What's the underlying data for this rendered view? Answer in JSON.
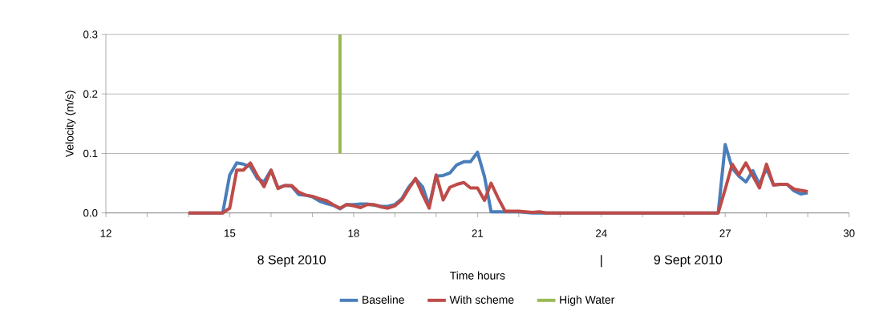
{
  "chart_data": {
    "type": "line",
    "xlabel": "Time hours",
    "ylabel": "Velocity (m/s)",
    "annotations": [
      "8 Sept 2010",
      "|",
      "9 Sept 2010"
    ],
    "xlim": [
      12,
      30
    ],
    "ylim": [
      0,
      0.3
    ],
    "xticks": [
      12,
      {
        "value": 13,
        "label": null
      },
      {
        "value": 14,
        "label": null
      },
      15,
      {
        "value": 16,
        "label": null
      },
      {
        "value": 17,
        "label": null
      },
      18,
      {
        "value": 19,
        "label": null
      },
      {
        "value": 20,
        "label": null
      },
      21,
      {
        "value": 22,
        "label": null
      },
      {
        "value": 23,
        "label": null
      },
      24,
      {
        "value": 25,
        "label": null
      },
      {
        "value": 26,
        "label": null
      },
      27,
      {
        "value": 28,
        "label": null
      },
      {
        "value": 29,
        "label": null
      },
      30
    ],
    "yticks": [
      {
        "value": 0,
        "label": "0.0"
      },
      {
        "value": 0.1,
        "label": "0.1"
      },
      {
        "value": 0.2,
        "label": "0.2"
      },
      {
        "value": 0.3,
        "label": "0.3"
      }
    ],
    "grid": "y",
    "legend": "bottom",
    "marker": "none",
    "line_style": "solid",
    "series": [
      {
        "name": "Baseline",
        "color": "#4a7ebb",
        "x": [
          14.0,
          14.83,
          15.0,
          15.17,
          15.33,
          15.5,
          15.67,
          15.83,
          16.0,
          16.17,
          16.33,
          16.5,
          16.67,
          16.83,
          17.0,
          17.17,
          17.33,
          17.5,
          17.67,
          17.83,
          18.0,
          18.17,
          18.33,
          18.5,
          18.67,
          18.83,
          19.0,
          19.17,
          19.33,
          19.5,
          19.67,
          19.83,
          20.0,
          20.17,
          20.33,
          20.5,
          20.67,
          20.83,
          21.0,
          21.17,
          21.33,
          21.5,
          21.67,
          22.0,
          22.33,
          26.83,
          27.0,
          27.17,
          27.33,
          27.5,
          27.67,
          27.83,
          28.0,
          28.17,
          28.33,
          28.5,
          28.67,
          28.83,
          29.0
        ],
        "values": [
          0,
          0,
          0.064,
          0.084,
          0.082,
          0.078,
          0.058,
          0.052,
          0.072,
          0.042,
          0.046,
          0.045,
          0.031,
          0.03,
          0.027,
          0.02,
          0.016,
          0.013,
          0.007,
          0.014,
          0.014,
          0.015,
          0.015,
          0.013,
          0.011,
          0.011,
          0.014,
          0.024,
          0.043,
          0.057,
          0.044,
          0.012,
          0.062,
          0.063,
          0.067,
          0.081,
          0.086,
          0.086,
          0.102,
          0.061,
          0.002,
          0.002,
          0.002,
          0.002,
          0,
          0,
          0.115,
          0.075,
          0.062,
          0.052,
          0.071,
          0.048,
          0.075,
          0.047,
          0.048,
          0.048,
          0.037,
          0.032,
          0.034
        ]
      },
      {
        "name": "With scheme",
        "color": "#be4b48",
        "x": [
          14.0,
          14.83,
          15.0,
          15.17,
          15.33,
          15.5,
          15.67,
          15.83,
          16.0,
          16.17,
          16.33,
          16.5,
          16.67,
          16.83,
          17.0,
          17.17,
          17.33,
          17.5,
          17.67,
          17.83,
          18.0,
          18.17,
          18.33,
          18.5,
          18.67,
          18.83,
          19.0,
          19.17,
          19.33,
          19.5,
          19.67,
          19.83,
          20.0,
          20.17,
          20.33,
          20.5,
          20.67,
          20.83,
          21.0,
          21.17,
          21.33,
          21.5,
          21.67,
          22.0,
          22.33,
          22.5,
          22.67,
          26.83,
          27.0,
          27.17,
          27.33,
          27.5,
          27.67,
          27.83,
          28.0,
          28.17,
          28.33,
          28.5,
          28.67,
          28.83,
          29.0
        ],
        "values": [
          0,
          0,
          0.008,
          0.072,
          0.072,
          0.084,
          0.062,
          0.044,
          0.072,
          0.041,
          0.046,
          0.046,
          0.035,
          0.03,
          0.028,
          0.024,
          0.021,
          0.014,
          0.008,
          0.014,
          0.012,
          0.009,
          0.014,
          0.014,
          0.01,
          0.008,
          0.012,
          0.022,
          0.04,
          0.058,
          0.031,
          0.008,
          0.064,
          0.022,
          0.043,
          0.048,
          0.051,
          0.042,
          0.042,
          0.021,
          0.05,
          0.025,
          0.003,
          0.003,
          0.001,
          0.002,
          0,
          0,
          0.04,
          0.082,
          0.064,
          0.084,
          0.062,
          0.042,
          0.082,
          0.047,
          0.048,
          0.048,
          0.04,
          0.038,
          0.036
        ]
      },
      {
        "name": "High Water",
        "color": "#98b954",
        "x": [
          17.67,
          17.67
        ],
        "values": [
          0.1,
          0.3
        ]
      }
    ]
  }
}
